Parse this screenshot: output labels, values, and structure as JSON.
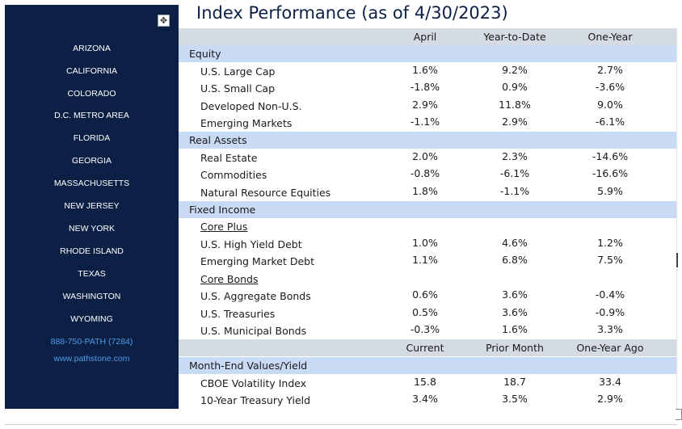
{
  "title": "Index Performance (as of 4/30/2023)",
  "sidebar": {
    "locations": [
      "ARIZONA",
      "CALIFORNIA",
      "COLORADO",
      "D.C. METRO AREA",
      "FLORIDA",
      "GEORGIA",
      "MASSACHUSETTS",
      "NEW JERSEY",
      "NEW YORK",
      "RHODE ISLAND",
      "TEXAS",
      "WASHINGTON",
      "WYOMING"
    ],
    "phone": "888-750-PATH (7284)",
    "website": "www.pathstone.com",
    "bg_color": "#0c2046",
    "link_color": "#4f9be8"
  },
  "table": {
    "headers": [
      "April",
      "Year-to-Date",
      "One-Year"
    ],
    "equity": {
      "title": "Equity",
      "rows": [
        {
          "label": "U.S. Large Cap",
          "v": [
            "1.6%",
            "9.2%",
            "2.7%"
          ]
        },
        {
          "label": "U.S. Small Cap",
          "v": [
            "-1.8%",
            "0.9%",
            "-3.6%"
          ]
        },
        {
          "label": "Developed Non-U.S.",
          "v": [
            "2.9%",
            "11.8%",
            "9.0%"
          ]
        },
        {
          "label": "Emerging Markets",
          "v": [
            "-1.1%",
            "2.9%",
            "-6.1%"
          ]
        }
      ]
    },
    "real_assets": {
      "title": "Real Assets",
      "rows": [
        {
          "label": "Real Estate",
          "v": [
            "2.0%",
            "2.3%",
            "-14.6%"
          ]
        },
        {
          "label": "Commodities",
          "v": [
            "-0.8%",
            "-6.1%",
            "-16.6%"
          ]
        },
        {
          "label": "Natural Resource Equities",
          "v": [
            "1.8%",
            "-1.1%",
            "5.9%"
          ]
        }
      ]
    },
    "fixed_income": {
      "title": "Fixed Income",
      "core_plus": {
        "title": "Core Plus",
        "rows": [
          {
            "label": "U.S. High Yield Debt",
            "v": [
              "1.0%",
              "4.6%",
              "1.2%"
            ]
          },
          {
            "label": "Emerging Market Debt",
            "v": [
              "1.1%",
              "6.8%",
              "7.5%"
            ]
          }
        ]
      },
      "core_bonds": {
        "title": "Core Bonds",
        "rows": [
          {
            "label": "U.S. Aggregate Bonds",
            "v": [
              "0.6%",
              "3.6%",
              "-0.4%"
            ]
          },
          {
            "label": "U.S. Treasuries",
            "v": [
              "0.5%",
              "3.6%",
              "-0.9%"
            ]
          },
          {
            "label": "U.S. Municipal Bonds",
            "v": [
              "-0.3%",
              "1.6%",
              "3.3%"
            ]
          }
        ]
      }
    },
    "month_end": {
      "headers": [
        "Current",
        "Prior Month",
        "One-Year Ago"
      ],
      "title": "Month-End Values/Yield",
      "rows": [
        {
          "label": "CBOE Volatility Index",
          "v": [
            "15.8",
            "18.7",
            "33.4"
          ]
        },
        {
          "label": "10-Year Treasury Yield",
          "v": [
            "3.4%",
            "3.5%",
            "2.9%"
          ]
        }
      ]
    }
  },
  "colors": {
    "header_band": "#d4dbe2",
    "category_band": "#c8daf4",
    "title": "#0c2046"
  },
  "icons": {
    "move_handle": "move-cross-icon"
  }
}
